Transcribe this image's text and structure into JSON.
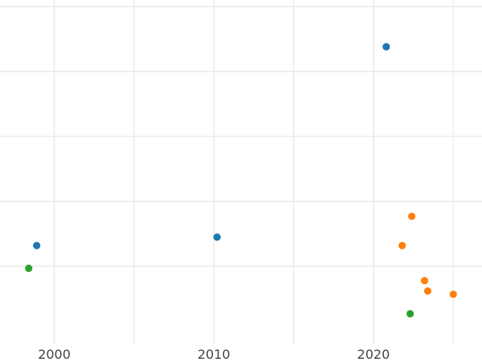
{
  "chart_data": {
    "type": "scatter",
    "title": "",
    "xlabel": "",
    "ylabel": "",
    "xlim": [
      1996.6,
      2026.8
    ],
    "ylim": [
      -0.2,
      5.1
    ],
    "xticks": [
      2000,
      2010,
      2020
    ],
    "xtick_labels": [
      "2000",
      "2010",
      "2020"
    ],
    "yticks": [
      1,
      2,
      3,
      4,
      5
    ],
    "minor_x_gridlines": [
      1995,
      2005,
      2015,
      2025
    ],
    "grid": true,
    "legend": "none",
    "series": [
      {
        "color": "#1f77b4",
        "points": [
          {
            "x": 1998.9,
            "y": 1.32
          },
          {
            "x": 2010.2,
            "y": 1.45
          },
          {
            "x": 2020.8,
            "y": 4.38
          }
        ]
      },
      {
        "color": "#ff7f0e",
        "points": [
          {
            "x": 2021.8,
            "y": 1.32
          },
          {
            "x": 2022.4,
            "y": 1.77
          },
          {
            "x": 2023.2,
            "y": 0.78
          },
          {
            "x": 2023.4,
            "y": 0.62
          },
          {
            "x": 2025.0,
            "y": 0.57
          }
        ]
      },
      {
        "color": "#2ca02c",
        "points": [
          {
            "x": 1998.4,
            "y": 0.97
          },
          {
            "x": 2022.3,
            "y": 0.27
          }
        ]
      }
    ]
  }
}
